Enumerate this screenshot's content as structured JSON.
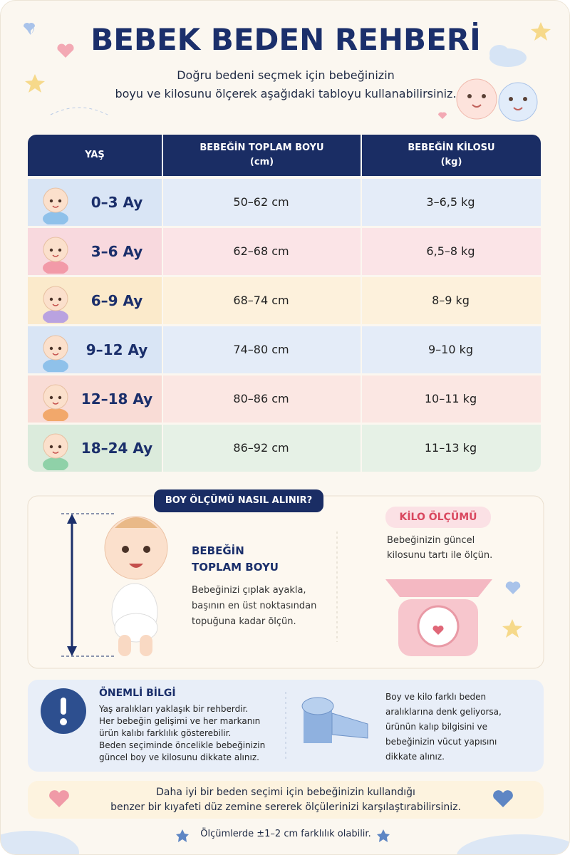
{
  "header": {
    "title": "BEBEK BEDEN REHBERİ",
    "subtitle": [
      "Doğru bedeni seçmek için bebeğinizin",
      "boyu ve kilosunu ölçerek aşağıdaki tabloyu kullanabilirsiniz."
    ]
  },
  "table": {
    "headers": [
      [
        "YAŞ"
      ],
      [
        "BEBEĞİN TOPLAM BOYU",
        "(cm)"
      ],
      [
        "BEBEĞİN KİLOSU",
        "(kg)"
      ]
    ],
    "rows": [
      [
        "0–3 Ay",
        "50–62 cm",
        "3–6,5 kg"
      ],
      [
        "3–6 Ay",
        "62–68 cm",
        "6,5–8 kg"
      ],
      [
        "6–9 Ay",
        "68–74 cm",
        "8–9 kg"
      ],
      [
        "9–12 Ay",
        "74–80 cm",
        "9–10 kg"
      ],
      [
        "12–18 Ay",
        "80–86 cm",
        "10–11 kg"
      ],
      [
        "18–24 Ay",
        "86–92 cm",
        "11–13 kg"
      ]
    ]
  },
  "height_section": {
    "badge": "BOY ÖLÇÜMÜ NASIL ALINIR?",
    "heading": [
      "BEBEĞİN",
      "TOPLAM BOYU"
    ],
    "body": [
      "Bebeğinizi çıplak ayakla,",
      "başının en üst noktasından",
      "topuğuna kadar ölçün."
    ]
  },
  "weight_section": {
    "badge": "KİLO ÖLÇÜMÜ",
    "body": [
      "Bebeğinizin güncel",
      "kilosunu tartı ile ölçün."
    ]
  },
  "important": {
    "title": "ÖNEMLİ BİLGİ",
    "body": [
      "Yaş aralıkları yaklaşık bir rehberdir.",
      "Her bebeğin gelişimi ve her markanın",
      "ürün kalıbı farklılık gösterebilir.",
      "Beden seçiminde öncelikle bebeğinizin",
      "güncel boy ve kilosunu dikkate alınız."
    ],
    "side": [
      "Boy ve kilo farklı beden",
      "aralıklarına denk geliyorsa,",
      "ürünün kalıp bilgisini ve",
      "bebeğinizin vücut yapısını",
      "dikkate alınız."
    ]
  },
  "tip": [
    "Daha iyi bir beden seçimi için bebeğinizin kullandığı",
    "benzer bir kıyafeti düz zemine sererek ölçülerinizi karşılaştırabilirsiniz."
  ],
  "footer": "Ölçümlerde ±1–2 cm farklılık olabilir."
}
